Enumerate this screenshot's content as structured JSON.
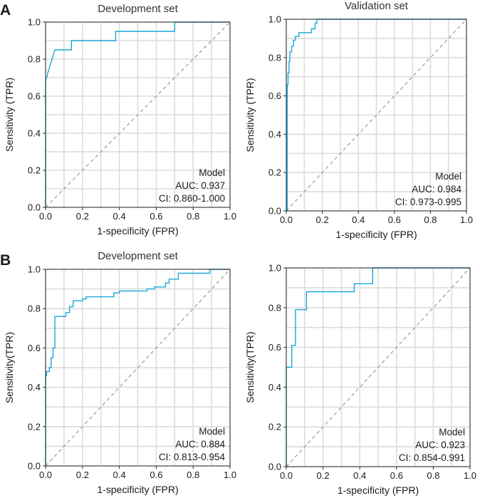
{
  "panel_labels": [
    "A",
    "B"
  ],
  "chart_data": [
    {
      "type": "line",
      "panel": "A",
      "title": "Development set",
      "xlabel": "1-specificity (FPR)",
      "ylabel": "Sensitivity (TPR)",
      "xlim": [
        0,
        1
      ],
      "ylim": [
        0,
        1
      ],
      "xticks": [
        "0.0",
        "0.2",
        "0.4",
        "0.6",
        "0.8",
        "1.0"
      ],
      "yticks": [
        "0.0",
        "0.2",
        "0.4",
        "0.6",
        "0.8",
        "1.0"
      ],
      "grid": true,
      "diagonal": true,
      "legend_position": "bottom-right",
      "legend": {
        "title": "Model",
        "auc": "AUC: 0.937",
        "ci": "CI: 0.860-1.000"
      },
      "series": [
        {
          "name": "Model",
          "color": "#1aa7d9",
          "x": [
            0,
            0,
            0.01,
            0.01,
            0.05,
            0.05,
            0.14,
            0.14,
            0.38,
            0.38,
            0.7,
            0.7,
            1.0
          ],
          "y": [
            0,
            0.69,
            0.71,
            0.72,
            0.85,
            0.85,
            0.85,
            0.9,
            0.9,
            0.95,
            0.95,
            1.0,
            1.0
          ]
        }
      ]
    },
    {
      "type": "line",
      "panel": "A",
      "title": "Validation set",
      "xlabel": "1-specificity (FPR)",
      "ylabel": "Sensitivity (TPR)",
      "xlim": [
        0,
        1
      ],
      "ylim": [
        0,
        1
      ],
      "xticks": [
        "0.0",
        "0.2",
        "0.4",
        "0.6",
        "0.8",
        "1.0"
      ],
      "yticks": [
        "0.0",
        "0.2",
        "0.4",
        "0.6",
        "0.8",
        "1.0"
      ],
      "grid": true,
      "diagonal": true,
      "legend_position": "bottom-right",
      "legend": {
        "title": "Model",
        "auc": "AUC: 0.984",
        "ci": "CI: 0.973-0.995"
      },
      "series": [
        {
          "name": "Model",
          "color": "#1aa7d9",
          "x": [
            0,
            0.005,
            0.005,
            0.01,
            0.01,
            0.015,
            0.015,
            0.02,
            0.02,
            0.03,
            0.03,
            0.04,
            0.04,
            0.05,
            0.05,
            0.07,
            0.07,
            0.14,
            0.14,
            0.16,
            0.16,
            0.17,
            0.17,
            1.0
          ],
          "y": [
            0,
            0,
            0.66,
            0.66,
            0.72,
            0.72,
            0.78,
            0.78,
            0.83,
            0.83,
            0.86,
            0.86,
            0.89,
            0.89,
            0.91,
            0.91,
            0.93,
            0.93,
            0.95,
            0.95,
            0.98,
            0.98,
            1.0,
            1.0
          ]
        }
      ]
    },
    {
      "type": "line",
      "panel": "B",
      "title": "Development set",
      "xlabel": "1-specificity (FPR)",
      "ylabel": "Sensitivity(TPR)",
      "xlim": [
        0,
        1
      ],
      "ylim": [
        0,
        1
      ],
      "xticks": [
        "0.0",
        "0.2",
        "0.4",
        "0.6",
        "0.8",
        "1.0"
      ],
      "yticks": [
        "0.0",
        "0.2",
        "0.4",
        "0.6",
        "0.8",
        "1.0"
      ],
      "grid": true,
      "diagonal": true,
      "legend_position": "bottom-right",
      "legend": {
        "title": "Model",
        "auc": "AUC: 0.884",
        "ci": "CI: 0.813-0.954"
      },
      "series": [
        {
          "name": "Model",
          "color": "#1aa7d9",
          "x": [
            0,
            0,
            0.005,
            0.005,
            0.02,
            0.02,
            0.03,
            0.03,
            0.04,
            0.04,
            0.05,
            0.05,
            0.11,
            0.11,
            0.13,
            0.13,
            0.15,
            0.15,
            0.2,
            0.2,
            0.22,
            0.22,
            0.37,
            0.37,
            0.4,
            0.4,
            0.55,
            0.55,
            0.59,
            0.59,
            0.65,
            0.65,
            0.67,
            0.67,
            0.72,
            0.72,
            0.89,
            0.89,
            1.0
          ],
          "y": [
            0,
            0.46,
            0.46,
            0.48,
            0.48,
            0.5,
            0.5,
            0.55,
            0.55,
            0.6,
            0.6,
            0.76,
            0.76,
            0.78,
            0.78,
            0.81,
            0.81,
            0.84,
            0.84,
            0.85,
            0.85,
            0.86,
            0.86,
            0.88,
            0.88,
            0.89,
            0.89,
            0.9,
            0.9,
            0.91,
            0.91,
            0.93,
            0.93,
            0.95,
            0.95,
            0.98,
            0.98,
            1.0,
            1.0
          ]
        }
      ]
    },
    {
      "type": "line",
      "panel": "B",
      "title": "",
      "xlabel": "1-specificity (FPR)",
      "ylabel": "Sensitivity(TPR)",
      "xlim": [
        0,
        1
      ],
      "ylim": [
        0,
        1
      ],
      "xticks": [
        "0.0",
        "0.2",
        "0.4",
        "0.6",
        "0.8",
        "1.0"
      ],
      "yticks": [
        "0.0",
        "0.2",
        "0.4",
        "0.6",
        "0.8",
        "1.0"
      ],
      "grid": true,
      "diagonal": true,
      "legend_position": "bottom-right",
      "legend": {
        "title": "Model",
        "auc": "AUC: 0.923",
        "ci": "CI: 0.854-0.991"
      },
      "series": [
        {
          "name": "Model",
          "color": "#1aa7d9",
          "x": [
            0,
            0,
            0.03,
            0.03,
            0.05,
            0.05,
            0.11,
            0.11,
            0.37,
            0.37,
            0.47,
            0.47,
            1.0
          ],
          "y": [
            0,
            0.5,
            0.5,
            0.61,
            0.61,
            0.79,
            0.79,
            0.88,
            0.88,
            0.92,
            0.92,
            1.0,
            1.0
          ]
        }
      ]
    }
  ]
}
